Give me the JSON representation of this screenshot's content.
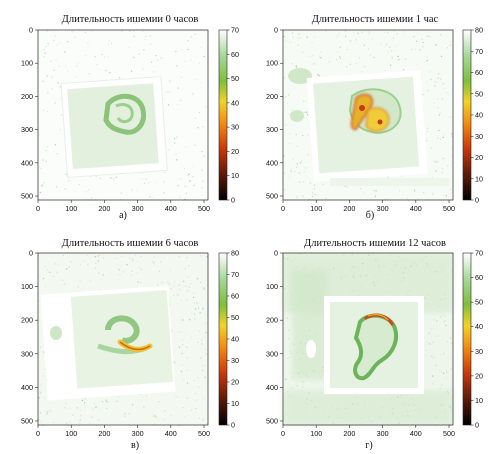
{
  "colormap": {
    "stops": [
      {
        "t": 0.0,
        "color": "#000000"
      },
      {
        "t": 0.15,
        "color": "#5c1a08"
      },
      {
        "t": 0.3,
        "color": "#c8380c"
      },
      {
        "t": 0.45,
        "color": "#f28a14"
      },
      {
        "t": 0.58,
        "color": "#f2d22a"
      },
      {
        "t": 0.7,
        "color": "#7fbe3c"
      },
      {
        "t": 0.85,
        "color": "#a7d89a"
      },
      {
        "t": 1.0,
        "color": "#ffffff"
      }
    ]
  },
  "chart_data": [
    {
      "type": "heatmap",
      "title": "Длительность ишемии 0 часов",
      "caption": "а)",
      "x_ticks": [
        0,
        100,
        200,
        300,
        400,
        500
      ],
      "y_ticks": [
        0,
        100,
        200,
        300,
        400,
        500
      ],
      "xlim": [
        0,
        512
      ],
      "ylim": [
        512,
        0
      ],
      "colorbar": {
        "min": 0,
        "max": 70,
        "ticks": [
          0,
          10,
          20,
          30,
          40,
          50,
          60,
          70
        ]
      },
      "hot_region": "none"
    },
    {
      "type": "heatmap",
      "title": "Длительность ишемии 1 час",
      "caption": "б)",
      "x_ticks": [
        0,
        100,
        200,
        300,
        400,
        500
      ],
      "y_ticks": [
        0,
        100,
        200,
        300,
        400,
        500
      ],
      "xlim": [
        0,
        512
      ],
      "ylim": [
        512,
        0
      ],
      "colorbar": {
        "min": 0,
        "max": 80,
        "ticks": [
          0,
          10,
          20,
          30,
          40,
          50,
          60,
          70,
          80
        ]
      },
      "hot_region": "large"
    },
    {
      "type": "heatmap",
      "title": "Длительность ишемии 6 часов",
      "caption": "в)",
      "x_ticks": [
        0,
        100,
        200,
        300,
        400,
        500
      ],
      "y_ticks": [
        0,
        100,
        200,
        300,
        400,
        500
      ],
      "xlim": [
        0,
        512
      ],
      "ylim": [
        512,
        0
      ],
      "colorbar": {
        "min": 0,
        "max": 80,
        "ticks": [
          0,
          10,
          20,
          30,
          40,
          50,
          60,
          70,
          80
        ]
      },
      "hot_region": "band"
    },
    {
      "type": "heatmap",
      "title": "Длительность ишемии 12 часов",
      "caption": "г)",
      "x_ticks": [
        0,
        100,
        200,
        300,
        400,
        500
      ],
      "y_ticks": [
        0,
        100,
        200,
        300,
        400,
        500
      ],
      "xlim": [
        0,
        512
      ],
      "ylim": [
        512,
        0
      ],
      "colorbar": {
        "min": 0,
        "max": 70,
        "ticks": [
          0,
          10,
          20,
          30,
          40,
          50,
          60,
          70
        ]
      },
      "hot_region": "small"
    }
  ]
}
